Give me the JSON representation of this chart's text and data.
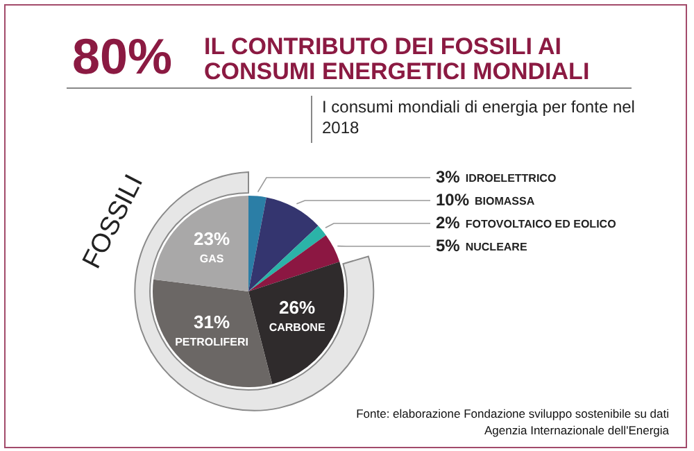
{
  "chart_data": {
    "type": "pie",
    "title": "IL CONTRIBUTO DEI FOSSILI AI CONSUMI ENERGETICI MONDIALI",
    "subtitle": "I consumi mondiali di energia per fonte nel 2018",
    "categories": [
      "IDROELETTRICO",
      "BIOMASSA",
      "FOTOVOLTAICO ED EOLICO",
      "NUCLEARE",
      "CARBONE",
      "PETROLIFERI",
      "GAS"
    ],
    "values": [
      3,
      10,
      2,
      5,
      26,
      31,
      23
    ],
    "value_labels": [
      "3%",
      "10%",
      "2%",
      "5%",
      "26%",
      "31%",
      "23%"
    ],
    "colors": [
      "#2b7ea6",
      "#34356f",
      "#2bb3a8",
      "#8c1742",
      "#2f2b2c",
      "#6b6765",
      "#a9a8a8"
    ],
    "annotations": [
      "80%",
      "FOSSILI",
      "Fonte: elaborazione Fondazione sviluppo sostenibile su dati\nAgenzia Internazionale dell'Energia"
    ],
    "legend": false
  }
}
